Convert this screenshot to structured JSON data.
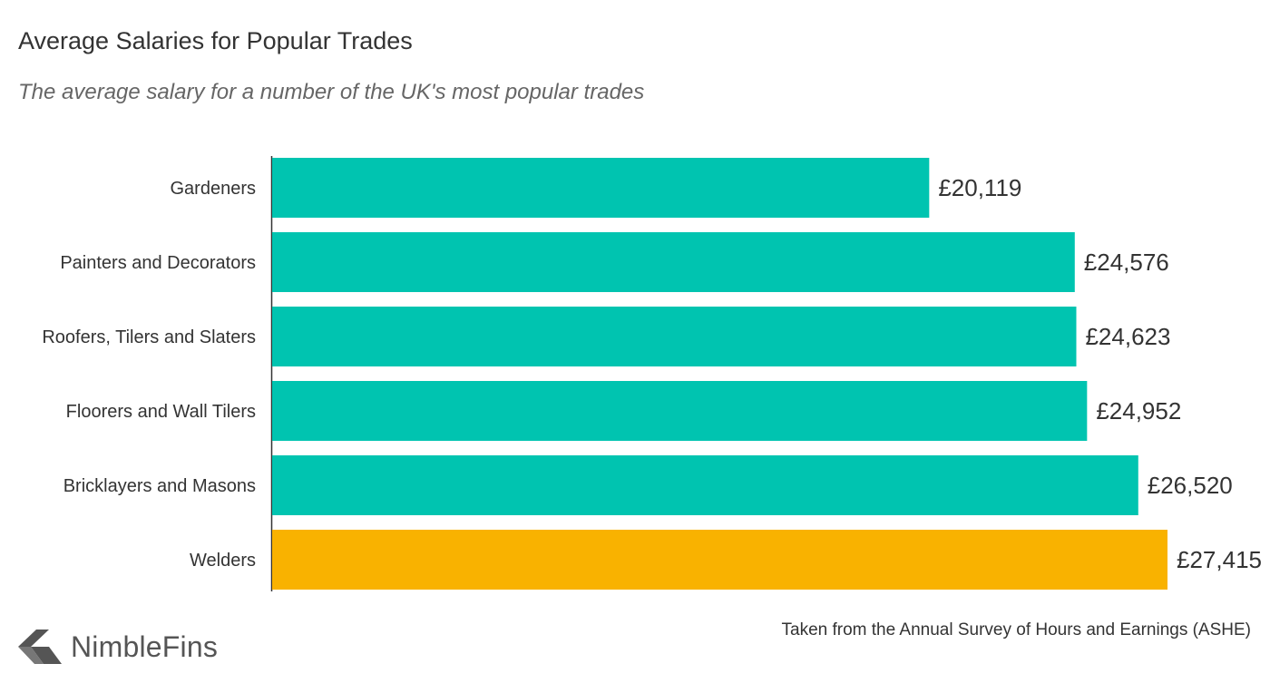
{
  "header": {
    "title": "Average Salaries for Popular Trades",
    "subtitle": "The average salary for a number of the UK's most popular trades"
  },
  "footer": {
    "source": "Taken from the Annual Survey of Hours and Earnings (ASHE)",
    "brand": "NimbleFins"
  },
  "chart_data": {
    "type": "bar",
    "orientation": "horizontal",
    "title": "Average Salaries for Popular Trades",
    "subtitle": "The average salary for a number of the UK's most popular trades",
    "categories": [
      "Gardeners",
      "Painters and Decorators",
      "Roofers, Tilers and Slaters",
      "Floorers and Wall Tilers",
      "Bricklayers and Masons",
      "Welders"
    ],
    "values": [
      20119,
      24576,
      24623,
      24952,
      26520,
      27415
    ],
    "value_labels": [
      "£20,119",
      "£24,576",
      "£24,623",
      "£24,952",
      "£26,520",
      "£27,415"
    ],
    "colors": [
      "#00c4b0",
      "#00c4b0",
      "#00c4b0",
      "#00c4b0",
      "#00c4b0",
      "#f9b200"
    ],
    "xlabel": "",
    "ylabel": "",
    "xlim": [
      0,
      27415
    ],
    "grid": false,
    "legend": "none"
  }
}
